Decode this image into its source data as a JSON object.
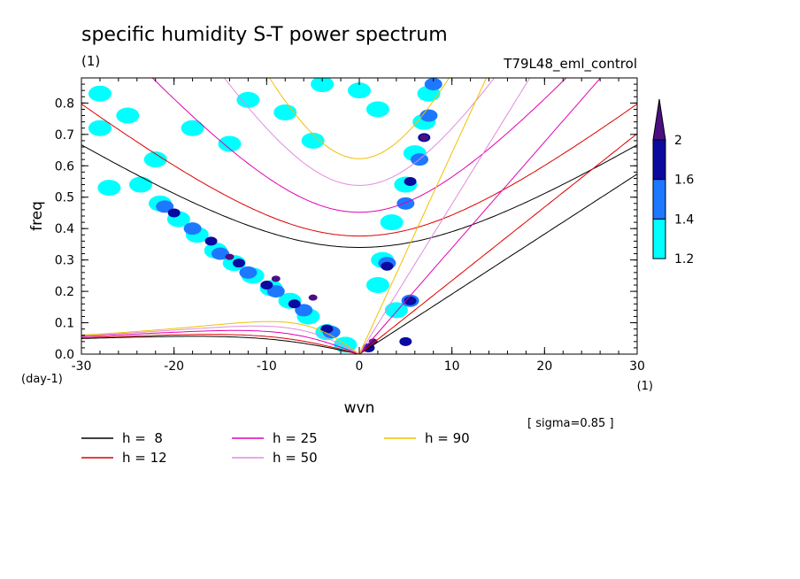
{
  "chart_data": {
    "type": "heatmap",
    "title": "specific humidity S-T power spectrum",
    "subtitle_left": "(1)",
    "subtitle_right": "T79L48_eml_control",
    "xlabel": "wvn",
    "ylabel": "freq",
    "x_unit": "(1)",
    "y_unit": "(day-1)",
    "annotation": "[ sigma=0.85 ]",
    "xlim": [
      -30,
      30
    ],
    "ylim": [
      0,
      0.88
    ],
    "x_ticks": [
      -30,
      -20,
      -10,
      0,
      10,
      20,
      30
    ],
    "y_ticks": [
      0.0,
      0.1,
      0.2,
      0.3,
      0.4,
      0.5,
      0.6,
      0.7,
      0.8
    ],
    "x_tick_labels": [
      "-30",
      "-20",
      "-10",
      "0",
      "10",
      "20",
      "30"
    ],
    "y_tick_labels": [
      "0.0",
      "0.1",
      "0.2",
      "0.3",
      "0.4",
      "0.5",
      "0.6",
      "0.7",
      "0.8"
    ],
    "colorbar": {
      "levels": [
        1.2,
        1.4,
        1.6,
        2
      ],
      "level_labels": [
        "1.2",
        "1.4",
        "1.6",
        "2"
      ],
      "colors": [
        "#00ffff",
        "#1e78ff",
        "#0a0aa0",
        "#4b0f82"
      ]
    },
    "contour_blobs": [
      {
        "x": -23.6,
        "y": 0.54,
        "level": 1.2
      },
      {
        "x": -21.5,
        "y": 0.48,
        "level": 1.2
      },
      {
        "x": -19.5,
        "y": 0.43,
        "level": 1.2
      },
      {
        "x": -17.5,
        "y": 0.38,
        "level": 1.2
      },
      {
        "x": -15.5,
        "y": 0.33,
        "level": 1.2
      },
      {
        "x": -13.5,
        "y": 0.29,
        "level": 1.2
      },
      {
        "x": -11.5,
        "y": 0.25,
        "level": 1.2
      },
      {
        "x": -9.5,
        "y": 0.21,
        "level": 1.2
      },
      {
        "x": -7.5,
        "y": 0.17,
        "level": 1.2
      },
      {
        "x": -5.5,
        "y": 0.12,
        "level": 1.2
      },
      {
        "x": -3.5,
        "y": 0.07,
        "level": 1.2
      },
      {
        "x": -1.5,
        "y": 0.03,
        "level": 1.2
      },
      {
        "x": -21,
        "y": 0.47,
        "level": 1.4
      },
      {
        "x": -18,
        "y": 0.4,
        "level": 1.4
      },
      {
        "x": -15,
        "y": 0.32,
        "level": 1.4
      },
      {
        "x": -12,
        "y": 0.26,
        "level": 1.4
      },
      {
        "x": -9,
        "y": 0.2,
        "level": 1.4
      },
      {
        "x": -6,
        "y": 0.14,
        "level": 1.4
      },
      {
        "x": -3,
        "y": 0.07,
        "level": 1.4
      },
      {
        "x": -20,
        "y": 0.45,
        "level": 1.6
      },
      {
        "x": -16,
        "y": 0.36,
        "level": 1.6
      },
      {
        "x": -13,
        "y": 0.29,
        "level": 1.6
      },
      {
        "x": -10,
        "y": 0.22,
        "level": 1.6
      },
      {
        "x": -7,
        "y": 0.16,
        "level": 1.6
      },
      {
        "x": -3.5,
        "y": 0.08,
        "level": 1.6
      },
      {
        "x": -14,
        "y": 0.31,
        "level": 2
      },
      {
        "x": -9,
        "y": 0.24,
        "level": 2
      },
      {
        "x": -5,
        "y": 0.18,
        "level": 2
      },
      {
        "x": 2,
        "y": 0.22,
        "level": 1.2
      },
      {
        "x": 2.5,
        "y": 0.3,
        "level": 1.2
      },
      {
        "x": 3.5,
        "y": 0.42,
        "level": 1.2
      },
      {
        "x": 5,
        "y": 0.54,
        "level": 1.2
      },
      {
        "x": 6,
        "y": 0.64,
        "level": 1.2
      },
      {
        "x": 7,
        "y": 0.74,
        "level": 1.2
      },
      {
        "x": 7.5,
        "y": 0.83,
        "level": 1.2
      },
      {
        "x": 4,
        "y": 0.14,
        "level": 1.2
      },
      {
        "x": 3,
        "y": 0.29,
        "level": 1.4
      },
      {
        "x": 5,
        "y": 0.48,
        "level": 1.4
      },
      {
        "x": 6.5,
        "y": 0.62,
        "level": 1.4
      },
      {
        "x": 7.5,
        "y": 0.76,
        "level": 1.4
      },
      {
        "x": 5.5,
        "y": 0.17,
        "level": 1.4
      },
      {
        "x": 3,
        "y": 0.28,
        "level": 1.6
      },
      {
        "x": 5.5,
        "y": 0.55,
        "level": 1.6
      },
      {
        "x": 7,
        "y": 0.69,
        "level": 1.6
      },
      {
        "x": 5.5,
        "y": 0.17,
        "level": 1.6
      },
      {
        "x": 1,
        "y": 0.02,
        "level": 1.6
      },
      {
        "x": 5,
        "y": 0.04,
        "level": 1.6
      },
      {
        "x": 1.5,
        "y": 0.04,
        "level": 2
      },
      {
        "x": 7,
        "y": 0.69,
        "level": 2
      },
      {
        "x": -28,
        "y": 0.72,
        "level": 1.2
      },
      {
        "x": -25,
        "y": 0.76,
        "level": 1.2
      },
      {
        "x": -18,
        "y": 0.72,
        "level": 1.2
      },
      {
        "x": -12,
        "y": 0.81,
        "level": 1.2
      },
      {
        "x": -4,
        "y": 0.86,
        "level": 1.2
      },
      {
        "x": 0,
        "y": 0.84,
        "level": 1.2
      },
      {
        "x": -22,
        "y": 0.62,
        "level": 1.2
      },
      {
        "x": -14,
        "y": 0.67,
        "level": 1.2
      },
      {
        "x": -8,
        "y": 0.77,
        "level": 1.2
      },
      {
        "x": -27,
        "y": 0.53,
        "level": 1.2
      },
      {
        "x": 8,
        "y": 0.86,
        "level": 1.4
      },
      {
        "x": -28,
        "y": 0.83,
        "level": 1.2
      },
      {
        "x": -5,
        "y": 0.68,
        "level": 1.2
      },
      {
        "x": 2,
        "y": 0.78,
        "level": 1.2
      }
    ],
    "series": [
      {
        "name": "h =  8",
        "h": 8,
        "color": "#000000"
      },
      {
        "name": "h = 12",
        "h": 12,
        "color": "#dd0000"
      },
      {
        "name": "h = 25",
        "h": 25,
        "color": "#e000b0"
      },
      {
        "name": "h = 50",
        "h": 50,
        "color": "#e08ce0"
      },
      {
        "name": "h = 90",
        "h": 90,
        "color": "#f0c000"
      }
    ]
  }
}
